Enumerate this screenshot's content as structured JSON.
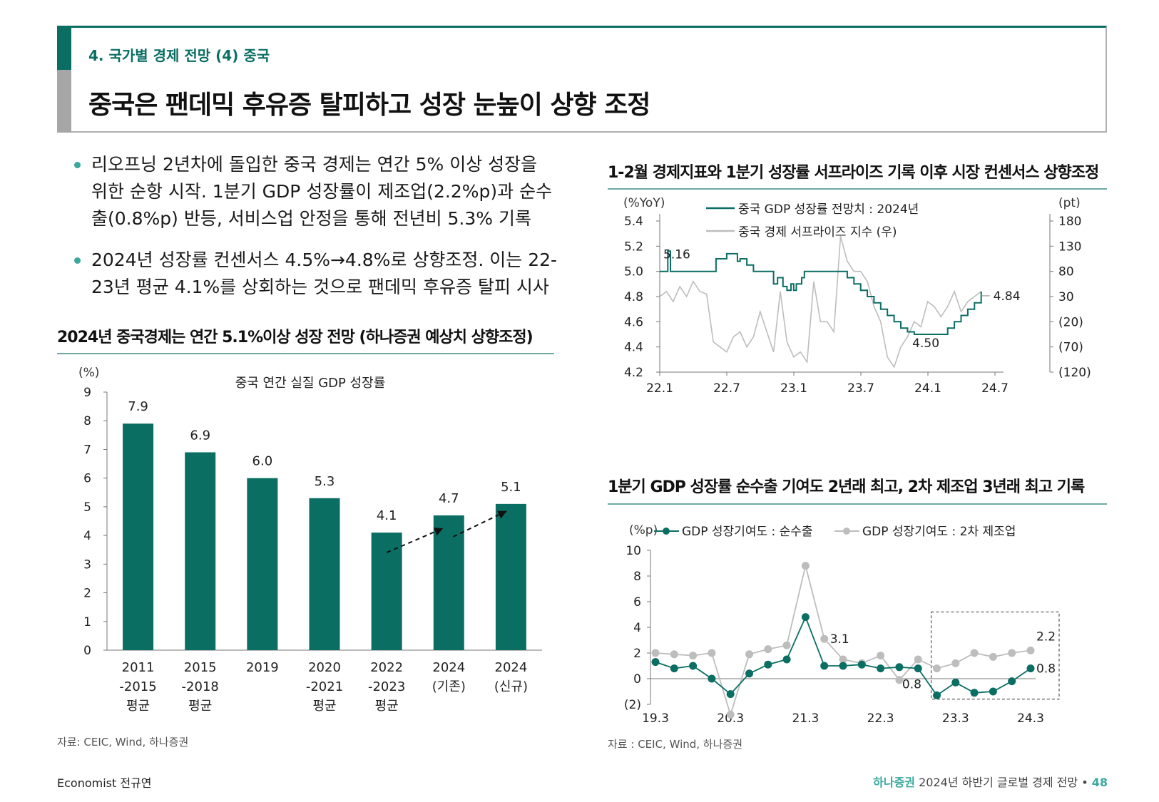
{
  "header": {
    "section_label": "4. 국가별 경제 전망 (4) 중국",
    "title": "중국은 팬데믹 후유증 탈피하고 성장 눈높이 상향 조정"
  },
  "bullets": [
    {
      "lines": [
        "리오프닝 2년차에 돌입한 중국 경제는 연간 5% 이상 성장을",
        "위한 순항 시작. 1분기 GDP 성장률이 제조업(2.2%p)과 순수",
        "출(0.8%p) 반등, 서비스업 안정을 통해 전년비 5.3% 기록"
      ]
    },
    {
      "lines": [
        "2024년 성장률 컨센서스 4.5%→4.8%로 상향조정. 이는 22-",
        "23년 평균 4.1%를 상회하는 것으로 팬데믹 후유증 탈피 시사"
      ]
    }
  ],
  "left_section": {
    "title": "2024년 중국경제는 연간 5.1%이상 성장 전망 (하나증권 예상치 상향조정)",
    "source": "자료: CEIC, Wind, 하나증권"
  },
  "right_top_section": {
    "title": "1-2월 경제지표와 1분기 성장률 서프라이즈 기록 이후 시장 컨센서스 상향조정"
  },
  "right_bottom_section": {
    "title": "1분기 GDP 성장률 순수출 기여도 2년래 최고, 2차 제조업 3년래 최고 기록",
    "source": "자료 : CEIC, Wind, 하나증권"
  },
  "footer": {
    "author": "Economist 전규연",
    "brand": "하나증권",
    "doc_title": "2024년 하반기 글로벌 경제 전망",
    "separator": "•",
    "page": "48"
  },
  "colors": {
    "teal": "#0b6e63",
    "gray": "#bdbdbd",
    "accent": "#3aa89c"
  },
  "chart_data": [
    {
      "type": "bar",
      "title": "중국 연간 실질 GDP 성장률",
      "ylabel": "(%)",
      "ylim": [
        0,
        9
      ],
      "yticks": [
        "0",
        "1",
        "2",
        "3",
        "4",
        "5",
        "6",
        "7",
        "8",
        "9"
      ],
      "categories": [
        [
          "2011",
          "-2015",
          "평균"
        ],
        [
          "2015",
          "-2018",
          "평균"
        ],
        [
          "2019"
        ],
        [
          "2020",
          "-2021",
          "평균"
        ],
        [
          "2022",
          "-2023",
          "평균"
        ],
        [
          "2024",
          "(기존)"
        ],
        [
          "2024",
          "(신규)"
        ]
      ],
      "values": [
        7.9,
        6.9,
        6.0,
        5.3,
        4.1,
        4.7,
        5.1
      ],
      "labels": [
        "7.9",
        "6.9",
        "6.0",
        "5.3",
        "4.1",
        "4.7",
        "5.1"
      ],
      "annotations": "dashed arrows 4.1→4.7→5.1"
    },
    {
      "type": "line",
      "left_unit": "(%YoY)",
      "right_unit": "(pt)",
      "left_ticks": [
        "4.2",
        "4.4",
        "4.6",
        "4.8",
        "5.0",
        "5.2",
        "5.4"
      ],
      "right_ticks": [
        "(120)",
        "(70)",
        "(20)",
        "30",
        "80",
        "130",
        "180"
      ],
      "ylim_left": [
        4.2,
        5.4
      ],
      "ylim_right": [
        -120,
        180
      ],
      "x_ticks": [
        "22.1",
        "22.7",
        "23.1",
        "23.7",
        "24.1",
        "24.7"
      ],
      "series": [
        {
          "name": "중국 GDP 성장률 전망치 : 2024년",
          "axis": "left",
          "x": [
            22.0,
            22.05,
            22.06,
            22.08,
            22.4,
            22.42,
            22.48,
            22.5,
            22.55,
            22.58,
            22.6,
            22.65,
            22.7,
            22.75,
            22.8,
            22.85,
            22.88,
            22.9,
            22.92,
            22.95,
            22.98,
            23.0,
            23.02,
            23.04,
            23.06,
            23.08,
            23.1,
            23.2,
            23.3,
            23.35,
            23.4,
            23.45,
            23.5,
            23.55,
            23.6,
            23.65,
            23.7,
            23.75,
            23.8,
            23.85,
            23.9,
            23.95,
            24.0,
            24.05,
            24.1,
            24.15,
            24.2,
            24.25,
            24.3,
            24.35,
            24.4
          ],
          "values": [
            5.0,
            5.0,
            5.16,
            5.0,
            5.0,
            5.1,
            5.1,
            5.14,
            5.14,
            5.08,
            5.1,
            5.05,
            5.0,
            5.0,
            5.0,
            4.9,
            4.95,
            4.95,
            4.88,
            4.85,
            4.9,
            4.85,
            4.9,
            4.9,
            4.95,
            5.0,
            5.0,
            5.0,
            5.0,
            5.0,
            4.95,
            4.9,
            4.85,
            4.8,
            4.75,
            4.7,
            4.65,
            4.6,
            4.55,
            4.52,
            4.5,
            4.5,
            4.5,
            4.5,
            4.5,
            4.55,
            4.6,
            4.65,
            4.7,
            4.75,
            4.84
          ],
          "end_label": "4.84",
          "low_label": "4.50",
          "high_label": "5.16"
        },
        {
          "name": "중국 경제 서프라이즈 지수 (우)",
          "axis": "right",
          "x": [
            22.0,
            22.05,
            22.1,
            22.15,
            22.2,
            22.25,
            22.3,
            22.35,
            22.4,
            22.45,
            22.5,
            22.55,
            22.6,
            22.65,
            22.7,
            22.75,
            22.8,
            22.85,
            22.9,
            22.95,
            23.0,
            23.05,
            23.1,
            23.15,
            23.2,
            23.25,
            23.3,
            23.35,
            23.4,
            23.45,
            23.5,
            23.55,
            23.6,
            23.65,
            23.7,
            23.75,
            23.8,
            23.85,
            23.9,
            23.95,
            24.0,
            24.05,
            24.1,
            24.15,
            24.2,
            24.25,
            24.3,
            24.35,
            24.4
          ],
          "values": [
            30,
            40,
            20,
            50,
            30,
            60,
            40,
            35,
            -60,
            -70,
            -80,
            -50,
            -40,
            -70,
            -50,
            0,
            -40,
            -80,
            40,
            -60,
            -90,
            -80,
            -100,
            60,
            -20,
            -20,
            -40,
            150,
            100,
            80,
            80,
            60,
            10,
            -20,
            -90,
            -110,
            -70,
            -50,
            -20,
            -30,
            20,
            10,
            -10,
            10,
            40,
            0,
            20,
            30,
            40
          ]
        }
      ]
    },
    {
      "type": "line",
      "ylabel": "(%p)",
      "ylim": [
        -2,
        10
      ],
      "yticks": [
        "(2)",
        "0",
        "2",
        "4",
        "6",
        "8",
        "10"
      ],
      "x_ticks": [
        "19.3",
        "20.3",
        "21.3",
        "22.3",
        "23.3",
        "24.3"
      ],
      "categories": [
        "19.3",
        "19.6",
        "19.9",
        "19.12",
        "20.3",
        "20.6",
        "20.9",
        "20.12",
        "21.3",
        "21.6",
        "21.9",
        "21.12",
        "22.3",
        "22.6",
        "22.9",
        "22.12",
        "23.3",
        "23.6",
        "23.9",
        "23.12",
        "24.3"
      ],
      "series": [
        {
          "name": "GDP 성장기여도 : 순수출",
          "values": [
            1.3,
            0.8,
            1.0,
            0.0,
            -1.2,
            0.4,
            1.1,
            1.5,
            4.8,
            1.0,
            1.0,
            1.1,
            0.8,
            0.9,
            0.8,
            -1.3,
            -0.3,
            -1.1,
            -1.0,
            -0.2,
            0.8
          ]
        },
        {
          "name": "GDP 성장기여도 : 2차 제조업",
          "values": [
            2.0,
            1.9,
            1.8,
            2.0,
            -2.8,
            1.9,
            2.3,
            2.6,
            8.8,
            3.1,
            1.5,
            1.2,
            1.8,
            -0.1,
            1.5,
            0.8,
            1.2,
            2.0,
            1.7,
            2.0,
            2.2
          ]
        }
      ],
      "labels": {
        "peak_gray": "3.1",
        "last_gray": "2.2",
        "last_teal": "0.8",
        "mid_label": "0.8"
      }
    }
  ]
}
